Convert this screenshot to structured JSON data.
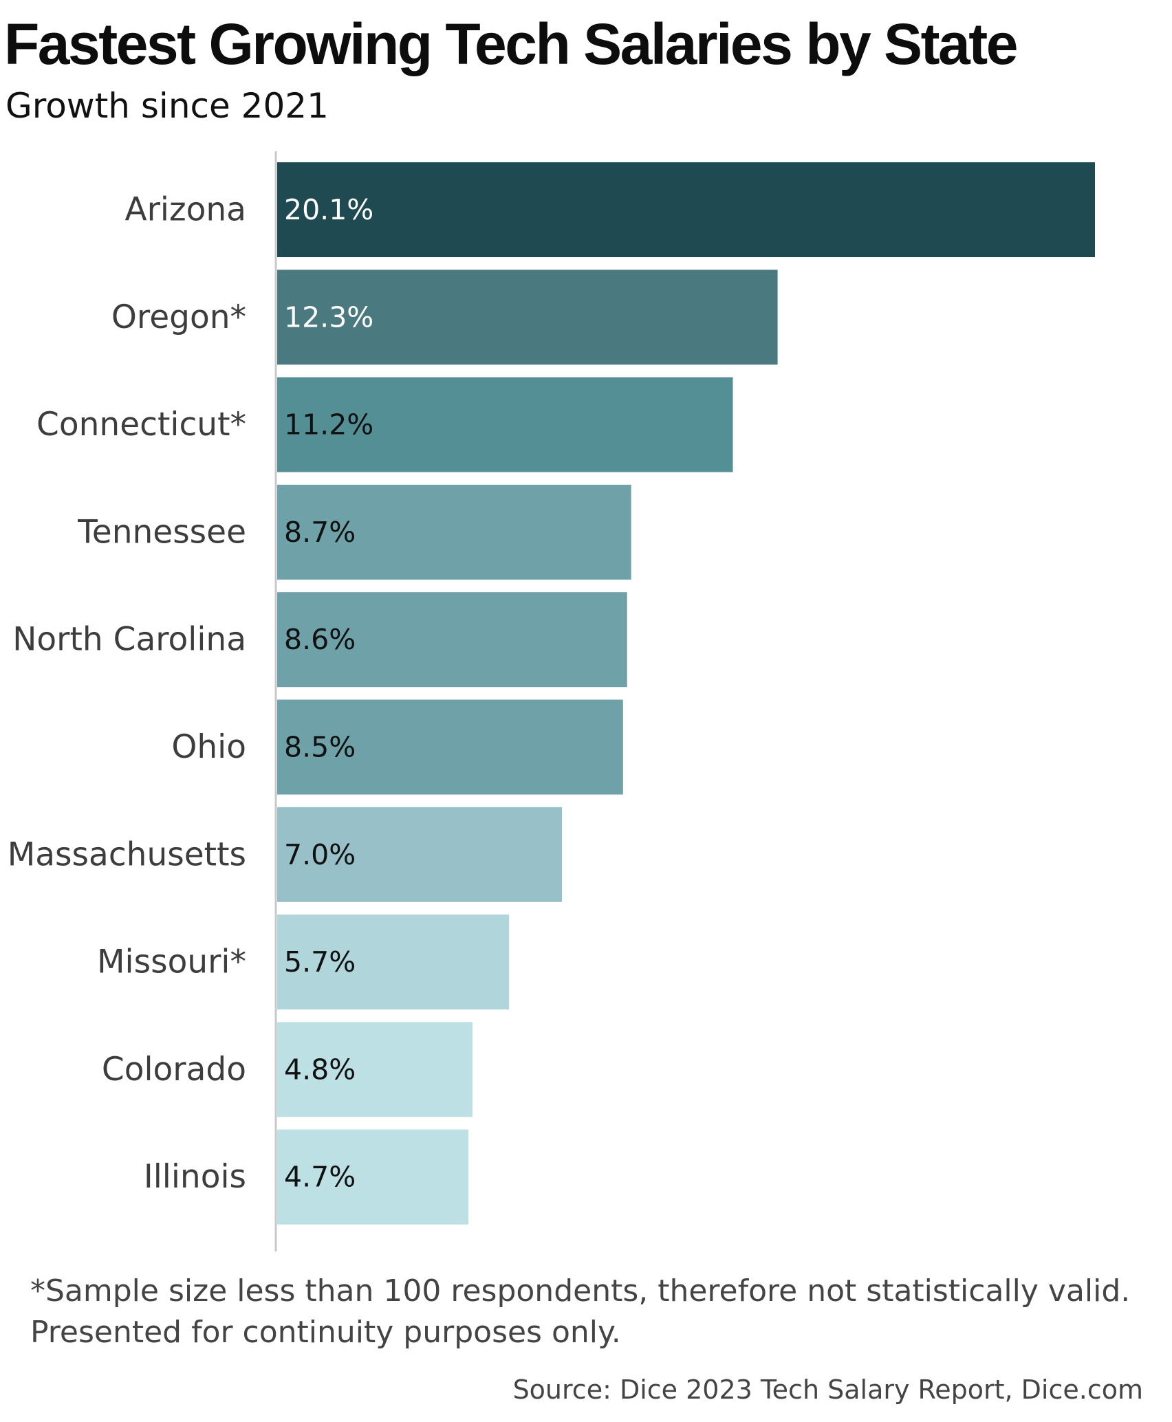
{
  "chart_data": {
    "type": "bar",
    "orientation": "horizontal",
    "title": "Fastest Growing Tech Salaries by State",
    "subtitle": "Growth since 2021",
    "categories": [
      "Arizona",
      "Oregon*",
      "Connecticut*",
      "Tennessee",
      "North Carolina",
      "Ohio",
      "Massachusetts",
      "Missouri*",
      "Colorado",
      "Illinois"
    ],
    "values": [
      20.1,
      12.3,
      11.2,
      8.7,
      8.6,
      8.5,
      7.0,
      5.7,
      4.8,
      4.7
    ],
    "value_labels": [
      "20.1%",
      "12.3%",
      "11.2%",
      "8.7%",
      "8.6%",
      "8.5%",
      "7.0%",
      "5.7%",
      "4.8%",
      "4.7%"
    ],
    "bar_colors": [
      "#1f4a52",
      "#4a7a80",
      "#558f96",
      "#6ea2a8",
      "#6ea2a8",
      "#6ea2a8",
      "#98c0c8",
      "#b0d5da",
      "#bce0e3",
      "#bce0e3"
    ],
    "label_colors": [
      "#ffffff",
      "#ffffff",
      "#111111",
      "#111111",
      "#111111",
      "#111111",
      "#111111",
      "#111111",
      "#111111",
      "#111111"
    ],
    "xlim": [
      0,
      20.1
    ],
    "grid": false,
    "legend": "none",
    "xlabel": "",
    "ylabel": ""
  },
  "footnote": {
    "line1": "*Sample size less than 100 respondents, therefore not statistically valid.",
    "line2": "Presented for continuity purposes only."
  },
  "source": "Source: Dice 2023 Tech Salary Report, Dice.com",
  "axis_color": "#c8c8c8"
}
